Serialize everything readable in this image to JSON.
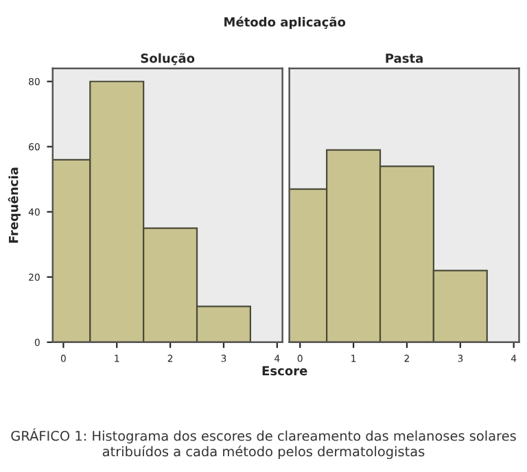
{
  "chart_data": [
    {
      "type": "histogram",
      "title": "Solução",
      "ylabel": "Frequência",
      "xlabel": "Escore",
      "bins": [
        -0.5,
        0.5,
        1.5,
        2.5,
        3.5
      ],
      "values": [
        56,
        80,
        35,
        11
      ],
      "color": "#c9c48f",
      "xlim": [
        -0.2,
        4.1
      ],
      "xticks": [
        0,
        1,
        2,
        3,
        4
      ],
      "ylim": [
        0,
        84
      ],
      "yticks": [
        0,
        20,
        40,
        60,
        80
      ],
      "grid": false,
      "annotations": [
        "Método aplicação",
        "GRÁFICO 1: Histograma dos escores de clareamento das melanoses solares atribuídos a cada método pelos dermatologistas"
      ]
    },
    {
      "type": "histogram",
      "title": "Pasta",
      "bins": [
        -0.5,
        0.5,
        1.5,
        2.5,
        3.5
      ],
      "values": [
        47,
        59,
        54,
        22
      ],
      "color": "#c9c48f",
      "xlim": [
        -0.2,
        4.1
      ],
      "xticks": [
        0,
        1,
        2,
        3,
        4
      ],
      "ylim": [
        0,
        84
      ],
      "yticks": [
        0,
        20,
        40,
        60,
        80
      ],
      "grid": false,
      "tick_labels": "x"
    }
  ]
}
